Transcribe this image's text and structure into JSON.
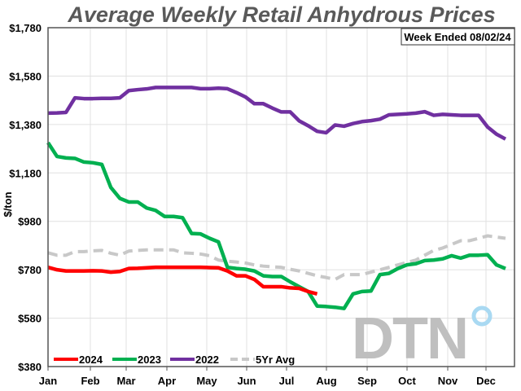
{
  "chart_data": {
    "type": "line",
    "title": "Average Weekly Retail Anhydrous Prices",
    "annotation": "Week Ended 08/02/24",
    "ylabel": "$/ton",
    "xlabel": "",
    "ylim": [
      380,
      1780
    ],
    "y_ticks": [
      "$1,780",
      "$1,580",
      "$1,380",
      "$1,180",
      "$980",
      "$780",
      "$580",
      "$380"
    ],
    "y_tick_values": [
      1780,
      1580,
      1380,
      1180,
      980,
      780,
      580,
      380
    ],
    "x_ticks": [
      "Jan",
      "Feb",
      "Mar",
      "Apr",
      "May",
      "Jun",
      "Jul",
      "Aug",
      "Sep",
      "Oct",
      "Nov",
      "Dec"
    ],
    "x_unit": "week of year",
    "grid": true,
    "legend_placement": "bottom-left",
    "watermark": "DTN",
    "series": [
      {
        "name": "2024",
        "color": "#ff0000",
        "dashed": false,
        "values": [
          790,
          780,
          775,
          775,
          775,
          776,
          775,
          770,
          773,
          785,
          786,
          788,
          790,
          790,
          790,
          790,
          790,
          790,
          789,
          788,
          775,
          755,
          755,
          740,
          710,
          710,
          710,
          705,
          703,
          690,
          680
        ]
      },
      {
        "name": "2023",
        "color": "#00b050",
        "dashed": false,
        "values": [
          1305,
          1248,
          1242,
          1240,
          1225,
          1222,
          1215,
          1120,
          1075,
          1060,
          1060,
          1035,
          1025,
          1000,
          1000,
          995,
          930,
          928,
          910,
          895,
          790,
          785,
          782,
          775,
          755,
          752,
          752,
          730,
          710,
          690,
          630,
          628,
          625,
          620,
          680,
          690,
          692,
          760,
          765,
          785,
          800,
          805,
          818,
          820,
          825,
          838,
          828,
          840,
          840,
          842,
          800,
          785
        ]
      },
      {
        "name": "2022",
        "color": "#7030a0",
        "dashed": false,
        "values": [
          1427,
          1428,
          1430,
          1490,
          1487,
          1487,
          1488,
          1488,
          1490,
          1520,
          1524,
          1527,
          1533,
          1533,
          1533,
          1533,
          1533,
          1528,
          1528,
          1530,
          1528,
          1512,
          1494,
          1466,
          1466,
          1448,
          1432,
          1432,
          1395,
          1375,
          1352,
          1346,
          1378,
          1373,
          1384,
          1392,
          1396,
          1402,
          1420,
          1422,
          1424,
          1427,
          1433,
          1418,
          1422,
          1420,
          1418,
          1418,
          1418,
          1370,
          1340,
          1320
        ]
      },
      {
        "name": "5Yr Avg",
        "color": "#c8c8c8",
        "dashed": true,
        "values": [
          850,
          840,
          840,
          855,
          855,
          858,
          860,
          848,
          840,
          857,
          860,
          862,
          862,
          862,
          862,
          850,
          848,
          845,
          838,
          820,
          815,
          812,
          808,
          800,
          795,
          792,
          790,
          782,
          775,
          765,
          755,
          748,
          740,
          760,
          760,
          760,
          770,
          780,
          790,
          800,
          810,
          820,
          840,
          860,
          870,
          885,
          900,
          900,
          910,
          920,
          915,
          910
        ]
      }
    ]
  }
}
